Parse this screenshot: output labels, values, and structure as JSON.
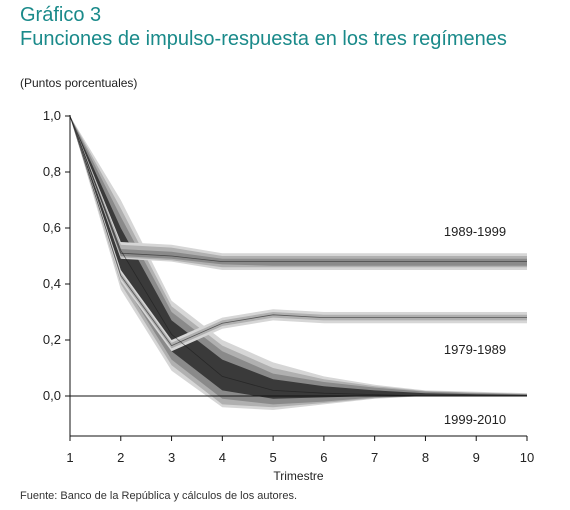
{
  "header": {
    "number": "Gráfico 3",
    "title": "Funciones de impulso-respuesta en los tres regímenes"
  },
  "unit_label": "(Puntos porcentuales)",
  "source": "Fuente: Banco de la República y cálculos de los autores.",
  "colors": {
    "title": "#1a8a8a",
    "band_outer": "#d6d6d6",
    "band_mid": "#b0b0b0",
    "band_inner": "#8a8a8a",
    "band_core": "#3a3a3a",
    "line": "#1a1a1a"
  },
  "chart_data": {
    "type": "area",
    "xlabel": "Trimestre",
    "ylabel": "",
    "x": [
      1,
      2,
      3,
      4,
      5,
      6,
      7,
      8,
      9,
      10
    ],
    "xlim": [
      1,
      10
    ],
    "ylim": [
      -0.14,
      1.0
    ],
    "yticks": [
      1.0,
      0.8,
      0.6,
      0.4,
      0.2,
      0.0
    ],
    "ytick_labels": [
      "1,0",
      "0,8",
      "0,6",
      "0,4",
      "0,2",
      "0,0"
    ],
    "xtick_labels": [
      "1",
      "2",
      "3",
      "4",
      "5",
      "6",
      "7",
      "8",
      "9",
      "10"
    ],
    "series": [
      {
        "name": "1989-1999",
        "center": [
          1.0,
          0.51,
          0.5,
          0.48,
          0.48,
          0.48,
          0.48,
          0.48,
          0.48,
          0.48
        ],
        "bands": [
          {
            "lower": [
              1.0,
              0.49,
              0.48,
              0.45,
              0.45,
              0.45,
              0.45,
              0.45,
              0.45,
              0.45
            ],
            "upper": [
              1.0,
              0.55,
              0.54,
              0.51,
              0.51,
              0.51,
              0.51,
              0.51,
              0.51,
              0.51
            ]
          },
          {
            "lower": [
              1.0,
              0.495,
              0.485,
              0.46,
              0.46,
              0.46,
              0.46,
              0.46,
              0.46,
              0.46
            ],
            "upper": [
              1.0,
              0.54,
              0.53,
              0.5,
              0.5,
              0.5,
              0.5,
              0.5,
              0.5,
              0.5
            ]
          },
          {
            "lower": [
              1.0,
              0.5,
              0.49,
              0.47,
              0.465,
              0.465,
              0.465,
              0.465,
              0.465,
              0.465
            ],
            "upper": [
              1.0,
              0.525,
              0.515,
              0.49,
              0.49,
              0.49,
              0.49,
              0.49,
              0.49,
              0.49
            ]
          }
        ]
      },
      {
        "name": "1979-1989",
        "center": [
          1.0,
          0.43,
          0.18,
          0.26,
          0.29,
          0.28,
          0.28,
          0.28,
          0.28,
          0.28
        ],
        "bands": [
          {
            "lower": [
              1.0,
              0.41,
              0.16,
              0.24,
              0.27,
              0.26,
              0.26,
              0.26,
              0.26,
              0.26
            ],
            "upper": [
              1.0,
              0.45,
              0.2,
              0.28,
              0.31,
              0.3,
              0.3,
              0.3,
              0.3,
              0.3
            ]
          },
          {
            "lower": [
              1.0,
              0.42,
              0.17,
              0.25,
              0.28,
              0.27,
              0.27,
              0.27,
              0.27,
              0.27
            ],
            "upper": [
              1.0,
              0.44,
              0.19,
              0.27,
              0.3,
              0.29,
              0.29,
              0.29,
              0.29,
              0.29
            ]
          }
        ]
      },
      {
        "name": "1999-2010",
        "center": [
          1.0,
          0.52,
          0.22,
          0.07,
          0.02,
          0.01,
          0.005,
          0.0,
          0.0,
          0.0
        ],
        "bands": [
          {
            "lower": [
              1.0,
              0.38,
              0.09,
              -0.04,
              -0.05,
              -0.03,
              -0.01,
              0.0,
              0.0,
              0.0
            ],
            "upper": [
              1.0,
              0.7,
              0.34,
              0.2,
              0.12,
              0.07,
              0.04,
              0.02,
              0.015,
              0.01
            ]
          },
          {
            "lower": [
              1.0,
              0.4,
              0.11,
              -0.03,
              -0.04,
              -0.025,
              -0.008,
              0.0,
              0.0,
              0.0
            ],
            "upper": [
              1.0,
              0.67,
              0.32,
              0.18,
              0.1,
              0.06,
              0.035,
              0.018,
              0.012,
              0.008
            ]
          },
          {
            "lower": [
              1.0,
              0.42,
              0.13,
              -0.01,
              -0.03,
              -0.02,
              -0.005,
              0.0,
              0.0,
              0.0
            ],
            "upper": [
              1.0,
              0.64,
              0.3,
              0.16,
              0.08,
              0.05,
              0.03,
              0.015,
              0.01,
              0.006
            ]
          },
          {
            "lower": [
              1.0,
              0.45,
              0.16,
              0.02,
              -0.01,
              -0.005,
              0.0,
              0.0,
              0.0,
              0.0
            ],
            "upper": [
              1.0,
              0.6,
              0.27,
              0.13,
              0.06,
              0.035,
              0.02,
              0.01,
              0.006,
              0.004
            ]
          }
        ]
      }
    ],
    "annotations": [
      "1989-1999",
      "1979-1989",
      "1999-2010"
    ]
  }
}
